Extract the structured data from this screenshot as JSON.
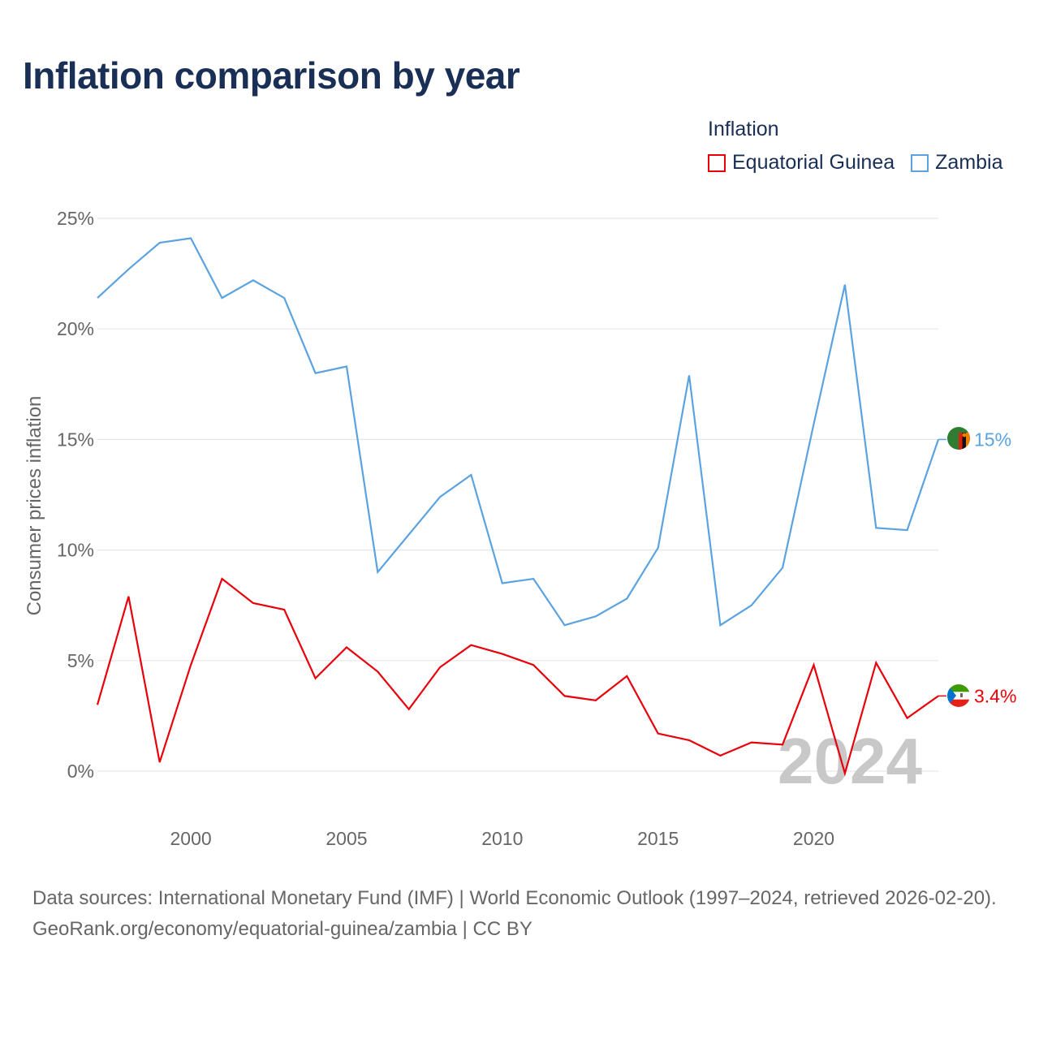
{
  "title": "Inflation comparison by year",
  "legend": {
    "title": "Inflation",
    "items": [
      {
        "label": "Equatorial Guinea",
        "color": "#e8000b"
      },
      {
        "label": "Zambia",
        "color": "#5ba3e0"
      }
    ]
  },
  "chart_data": {
    "type": "line",
    "title": "Inflation comparison by year",
    "xlabel": "",
    "ylabel": "Consumer prices inflation",
    "ylim": [
      0,
      25
    ],
    "xlim": [
      1997,
      2024
    ],
    "y_ticks": [
      0,
      5,
      10,
      15,
      20,
      25
    ],
    "y_tick_labels": [
      "0%",
      "5%",
      "10%",
      "15%",
      "20%",
      "25%"
    ],
    "x_ticks": [
      2000,
      2005,
      2010,
      2015,
      2020
    ],
    "x_tick_labels": [
      "2000",
      "2005",
      "2010",
      "2015",
      "2020"
    ],
    "grid": true,
    "watermark_year": "2024",
    "x": [
      1997,
      1998,
      1999,
      2000,
      2001,
      2002,
      2003,
      2004,
      2005,
      2006,
      2007,
      2008,
      2009,
      2010,
      2011,
      2012,
      2013,
      2014,
      2015,
      2016,
      2017,
      2018,
      2019,
      2020,
      2021,
      2022,
      2023,
      2024
    ],
    "series": [
      {
        "name": "Equatorial Guinea",
        "color": "#e8000b",
        "end_label": "3.4%",
        "flag": "equatorial-guinea-flag-icon",
        "values": [
          3.0,
          7.9,
          0.4,
          4.8,
          8.7,
          7.6,
          7.3,
          4.2,
          5.6,
          4.5,
          2.8,
          4.7,
          5.7,
          5.3,
          4.8,
          3.4,
          3.2,
          4.3,
          1.7,
          1.4,
          0.7,
          1.3,
          1.2,
          4.8,
          -0.1,
          4.9,
          2.4,
          3.4
        ]
      },
      {
        "name": "Zambia",
        "color": "#5ba3e0",
        "end_label": "15%",
        "flag": "zambia-flag-icon",
        "values": [
          21.4,
          22.7,
          23.9,
          24.1,
          21.4,
          22.2,
          21.4,
          18.0,
          18.3,
          9.0,
          10.7,
          12.4,
          13.4,
          8.5,
          8.7,
          6.6,
          7.0,
          7.8,
          10.1,
          17.9,
          6.6,
          7.5,
          9.2,
          15.7,
          22.0,
          11.0,
          10.9,
          15.0
        ]
      }
    ]
  },
  "footer": {
    "sources": "Data sources: International Monetary Fund (IMF) | World Economic Outlook (1997–2024, retrieved 2026-02-20).",
    "credit": "GeoRank.org/economy/equatorial-guinea/zambia | CC BY"
  }
}
